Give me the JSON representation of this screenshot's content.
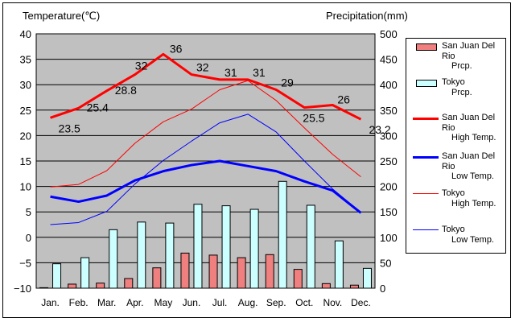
{
  "chart_data": {
    "type": "bar+line",
    "categories": [
      "Jan.",
      "Feb.",
      "Mar.",
      "Apr.",
      "May",
      "Jun.",
      "Jul.",
      "Aug.",
      "Sep.",
      "Oct.",
      "Nov.",
      "Dec."
    ],
    "left_axis": {
      "title": "Temperature(℃)",
      "range": [
        -10,
        40
      ],
      "ticks": [
        -10,
        -5,
        0,
        5,
        10,
        15,
        20,
        25,
        30,
        35,
        40
      ]
    },
    "right_axis": {
      "title": "Precipitation(mm)",
      "range": [
        0,
        500
      ],
      "ticks": [
        0,
        50,
        100,
        150,
        200,
        250,
        300,
        350,
        400,
        450,
        500
      ]
    },
    "grid": true,
    "legend_placement": "right",
    "bars": [
      {
        "name": "San Juan Del Rio",
        "subname": "Prcp.",
        "color": "#f08080",
        "values": [
          1,
          8,
          10,
          19,
          40,
          69,
          65,
          60,
          66,
          37,
          9,
          6
        ]
      },
      {
        "name": "Tokyo",
        "subname": "Prcp.",
        "color": "#ccffff",
        "values": [
          48,
          60,
          115,
          130,
          128,
          165,
          162,
          155,
          210,
          163,
          93,
          39
        ]
      }
    ],
    "lines": [
      {
        "name": "San Juan Del Rio",
        "subname": "High Temp.",
        "color": "#ff0000",
        "width": 3,
        "show_labels": true,
        "values": [
          23.5,
          25.4,
          28.8,
          32,
          36,
          32,
          31,
          31,
          29,
          25.5,
          26,
          23.2
        ]
      },
      {
        "name": "San Juan Del Rio",
        "subname": "Low Temp.",
        "color": "#0000ff",
        "width": 3,
        "show_labels": false,
        "values": [
          8,
          7,
          8.2,
          11.2,
          13,
          14.2,
          15,
          14,
          13,
          11,
          9.2,
          4.8
        ]
      },
      {
        "name": "Tokyo",
        "subname": "High Temp.",
        "color": "#ff0000",
        "width": 1,
        "show_labels": false,
        "values": [
          9.9,
          10.4,
          13.1,
          18.5,
          22.7,
          25.2,
          29,
          30.8,
          26.9,
          21.5,
          16.3,
          11.9
        ]
      },
      {
        "name": "Tokyo",
        "subname": "Low Temp.",
        "color": "#0000ff",
        "width": 1,
        "show_labels": false,
        "values": [
          2.5,
          2.9,
          5.1,
          10.5,
          15.1,
          18.9,
          22.5,
          24.2,
          20.7,
          15,
          9.5,
          4.9
        ]
      }
    ]
  }
}
